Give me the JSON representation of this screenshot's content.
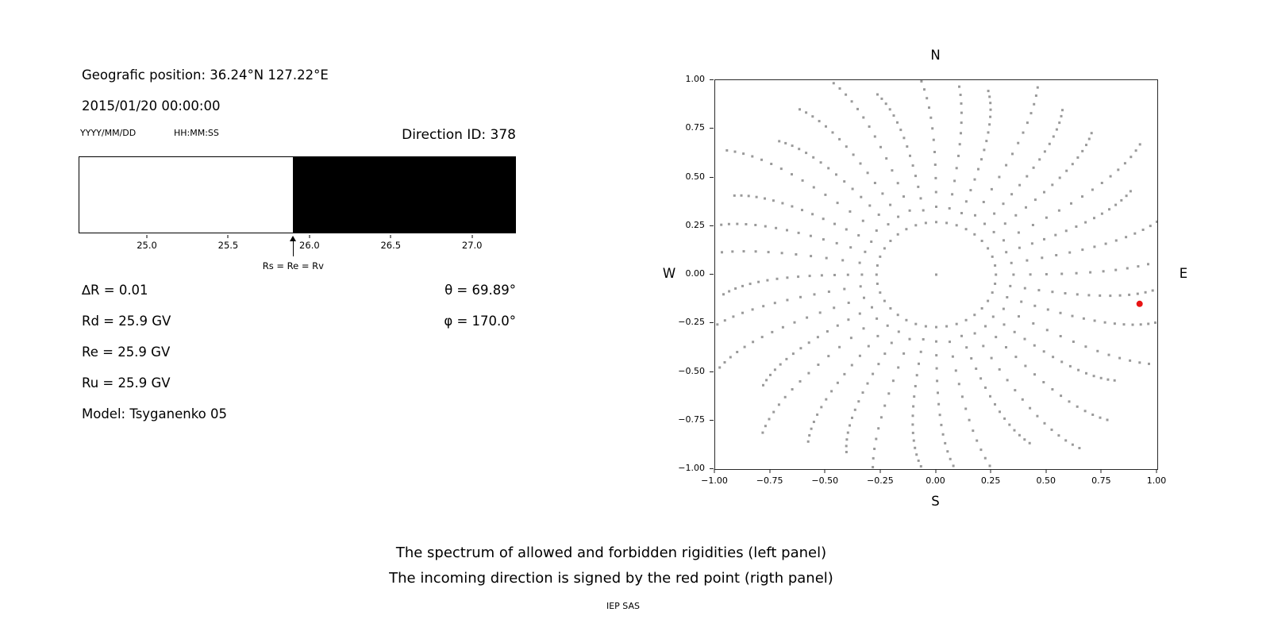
{
  "left_panel": {
    "geo_position": "Geografic position: 36.24°N 127.22°E",
    "datetime": "2015/01/20 00:00:00",
    "date_format": "YYYY/MM/DD",
    "time_format": "HH:MM:SS",
    "direction_id": "Direction ID: 378",
    "params": [
      "∆R = 0.01",
      "Rd = 25.9 GV",
      "Re = 25.9 GV",
      "Ru = 25.9 GV",
      "Model: Tsyganenko 05"
    ],
    "angles": [
      "θ = 69.89°",
      "φ = 170.0°"
    ]
  },
  "caption": {
    "line1": "The spectrum of allowed and forbidden rigidities (left panel)",
    "line2": "The incoming direction is signed by the red point (rigth panel)",
    "credit": "IEP SAS"
  },
  "chart_data": [
    {
      "type": "area",
      "title": "Spectrum of allowed and forbidden rigidities",
      "x_range": [
        24.58,
        27.27
      ],
      "ticks": [
        25.0,
        25.5,
        26.0,
        26.5,
        27.0
      ],
      "tick_labels": [
        "25.0",
        "25.5",
        "26.0",
        "26.5",
        "27.0"
      ],
      "boundary": 25.9,
      "boundary_label": "Rs = Re = Rv",
      "allowed_region": [
        24.58,
        25.9
      ],
      "forbidden_region": [
        25.9,
        27.27
      ],
      "allowed_color": "#ffffff",
      "forbidden_color": "#000000"
    },
    {
      "type": "scatter",
      "title": "Incoming direction map",
      "x_range": [
        -1,
        1
      ],
      "y_range": [
        -1,
        1
      ],
      "ticks": [
        -1.0,
        -0.75,
        -0.5,
        -0.25,
        0.0,
        0.25,
        0.5,
        0.75,
        1.0
      ],
      "tick_labels": [
        "−1.00",
        "−0.75",
        "−0.50",
        "−0.25",
        "0.00",
        "0.25",
        "0.50",
        "0.75",
        "1.00"
      ],
      "direction_labels": {
        "top": "N",
        "bottom": "S",
        "left": "W",
        "right": "E"
      },
      "dot_color": "#9a9a9a",
      "red_point": {
        "x": 0.92,
        "y": -0.15,
        "color": "#e81414"
      },
      "generator": {
        "n_spokes": 36,
        "r_inner": 0.27,
        "r_outer": 1.12,
        "points_per_spoke": 16,
        "taper": 0.45,
        "twist_deg": 6,
        "center_dot": true
      }
    }
  ]
}
